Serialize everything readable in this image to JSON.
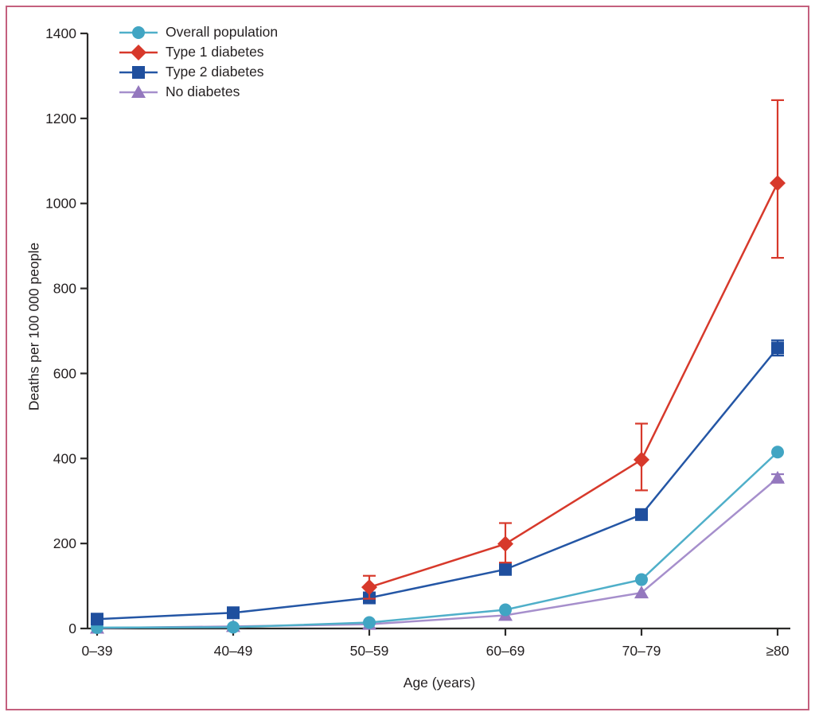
{
  "figure": {
    "border_color": "#C4607E",
    "background_color": "#FFFFFF",
    "text_color": "#231F20",
    "axis_color": "#2B2A29"
  },
  "chart_data": {
    "type": "line",
    "title": "",
    "xlabel": "Age (years)",
    "ylabel": "Deaths per 100 000 people",
    "categories": [
      "0–39",
      "40–49",
      "50–59",
      "60–69",
      "70–79",
      "≥80"
    ],
    "ylim": [
      0,
      1400
    ],
    "yticks": [
      0,
      200,
      400,
      600,
      800,
      1000,
      1200,
      1400
    ],
    "grid": false,
    "legend_position": "top-left",
    "series": [
      {
        "name": "Overall population",
        "marker": "circle",
        "color": "#41A5C3",
        "line_color": "#4FAFC9",
        "values": [
          2,
          3,
          14,
          44,
          115,
          415
        ],
        "err_lo": [
          null,
          null,
          null,
          null,
          null,
          null
        ],
        "err_hi": [
          null,
          null,
          null,
          null,
          null,
          null
        ]
      },
      {
        "name": "Type 1 diabetes",
        "marker": "diamond",
        "color": "#D7392B",
        "line_color": "#D7392B",
        "values": [
          null,
          null,
          97,
          199,
          397,
          1048
        ],
        "err_lo": [
          null,
          null,
          70,
          155,
          325,
          872
        ],
        "err_hi": [
          null,
          null,
          124,
          248,
          482,
          1243
        ]
      },
      {
        "name": "Type 2 diabetes",
        "marker": "square",
        "color": "#1F4F9E",
        "line_color": "#2456A5",
        "values": [
          22,
          37,
          72,
          139,
          268,
          660
        ],
        "err_lo": [
          null,
          null,
          null,
          null,
          null,
          642
        ],
        "err_hi": [
          null,
          null,
          null,
          null,
          null,
          678
        ]
      },
      {
        "name": "No diabetes",
        "marker": "triangle",
        "color": "#9478BE",
        "line_color": "#A68FCC",
        "values": [
          1,
          5,
          10,
          31,
          84,
          354
        ],
        "err_lo": [
          null,
          null,
          null,
          null,
          null,
          345
        ],
        "err_hi": [
          null,
          null,
          null,
          null,
          null,
          363
        ]
      }
    ],
    "draw_order": [
      3,
      0,
      2,
      1
    ]
  }
}
